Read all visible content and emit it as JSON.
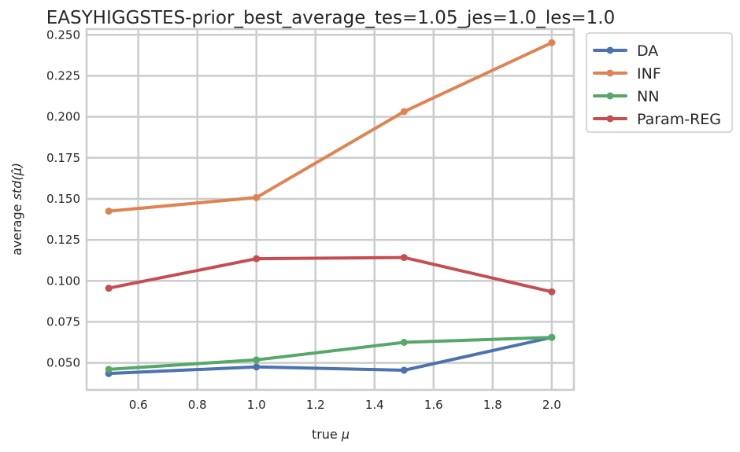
{
  "chart_data": {
    "type": "line",
    "title": "EASYHIGGSTES-prior_best_average_tes=1.05_jes=1.0_les=1.0",
    "xlabel_prefix": "true ",
    "xlabel_symbol": "μ",
    "ylabel_prefix": "average ",
    "ylabel_symbol": "std(μ̂)",
    "x": [
      0.5,
      1.0,
      1.5,
      2.0
    ],
    "xlim": [
      0.425,
      2.075
    ],
    "ylim": [
      0.0335,
      0.2535
    ],
    "xticks": [
      "0.6",
      "0.8",
      "1.0",
      "1.2",
      "1.4",
      "1.6",
      "1.8",
      "2.0"
    ],
    "yticks": [
      "0.050",
      "0.075",
      "0.100",
      "0.125",
      "0.150",
      "0.175",
      "0.200",
      "0.225",
      "0.250"
    ],
    "grid": true,
    "legend_position": "outside-top-right",
    "series": [
      {
        "name": "DA",
        "color": "#4c72b0",
        "values": [
          0.0435,
          0.0475,
          0.0455,
          0.0655
        ]
      },
      {
        "name": "INF",
        "color": "#dd8452",
        "values": [
          0.1425,
          0.1508,
          0.2032,
          0.2452
        ]
      },
      {
        "name": "NN",
        "color": "#55a868",
        "values": [
          0.046,
          0.0518,
          0.0625,
          0.0655
        ]
      },
      {
        "name": "Param-REG",
        "color": "#c44e52",
        "values": [
          0.0955,
          0.1135,
          0.1142,
          0.0933
        ]
      }
    ]
  }
}
